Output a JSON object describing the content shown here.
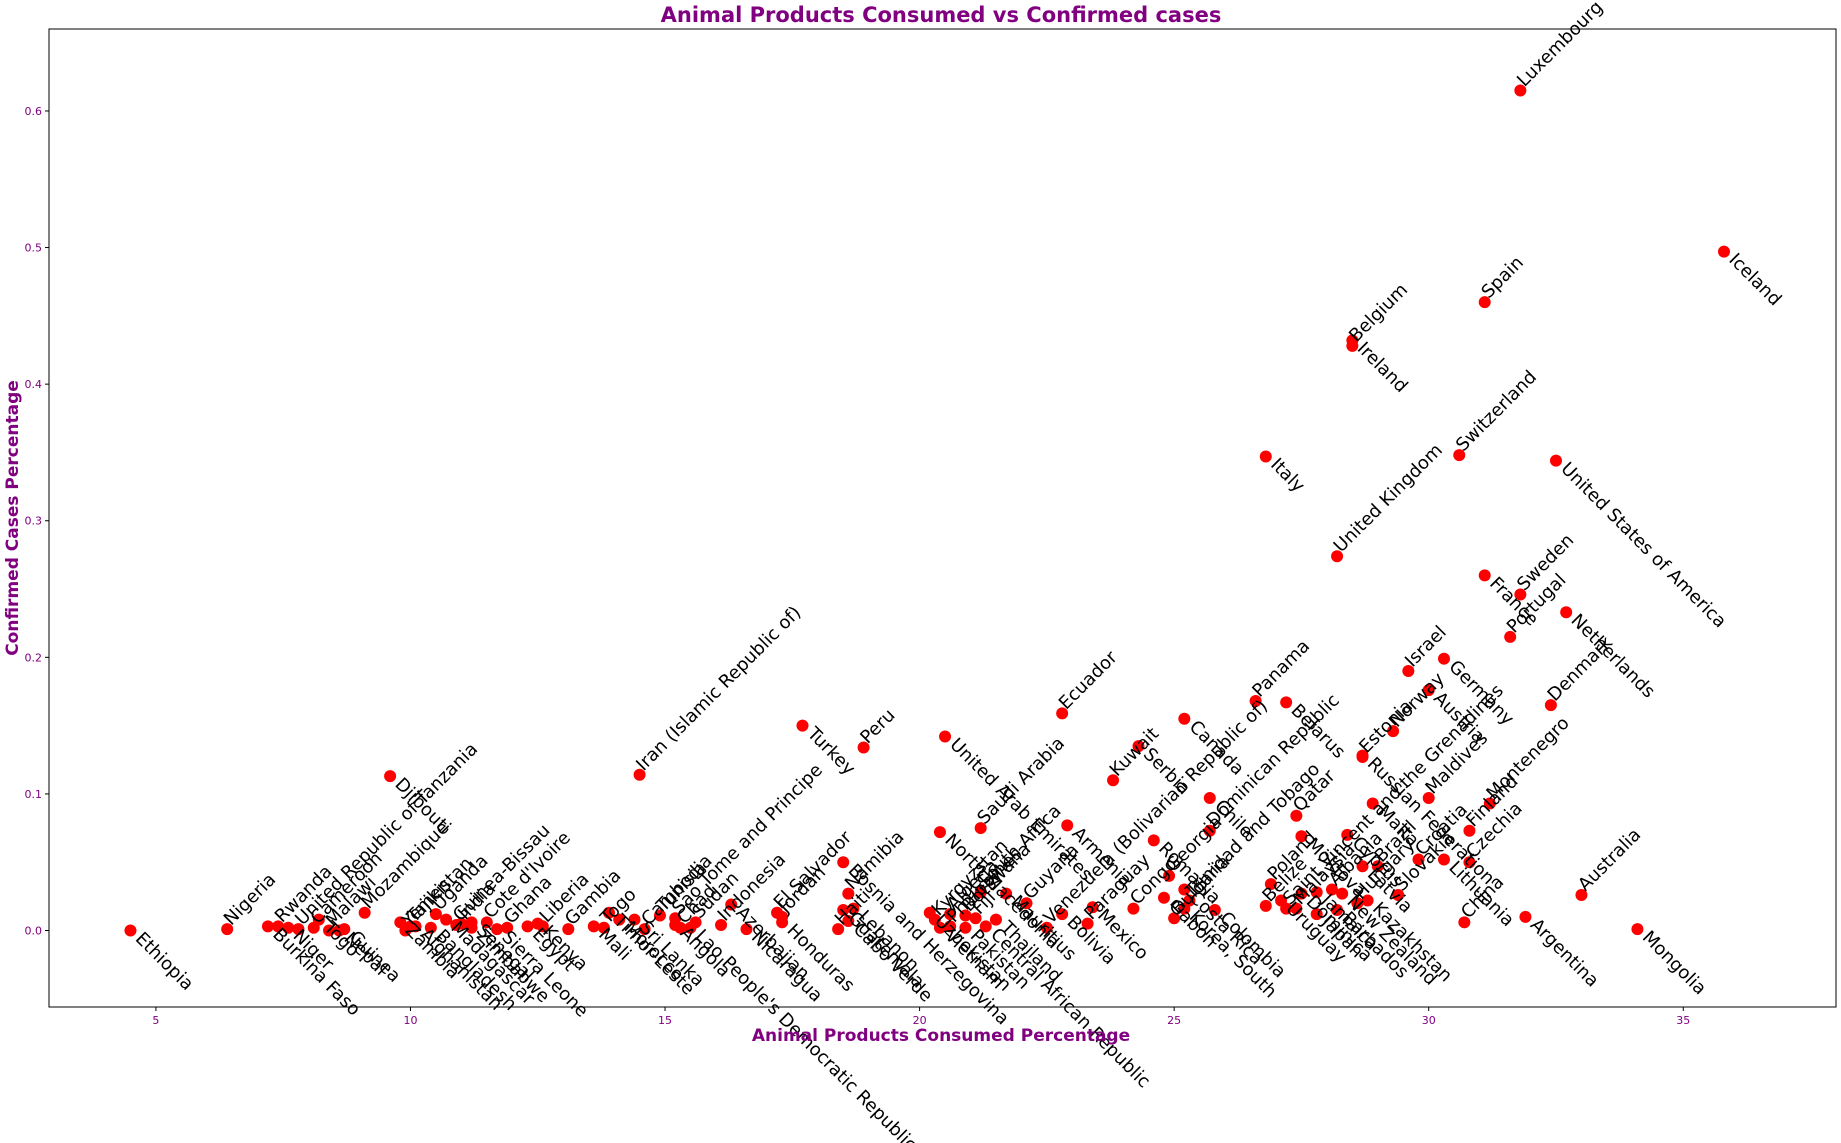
{
  "chart_data": {
    "type": "scatter",
    "title": "Animal Products Consumed vs Confirmed cases",
    "xlabel": "Animal Products Consumed Percentage",
    "ylabel": "Confirmed Cases Percentage",
    "xlim": [
      2.9,
      38.0
    ],
    "ylim": [
      -0.056,
      0.66
    ],
    "xticks": [
      5,
      10,
      15,
      20,
      25,
      30,
      35
    ],
    "yticks": [
      0.0,
      0.1,
      0.2,
      0.3,
      0.4,
      0.5,
      0.6
    ],
    "grid": false,
    "marker_color": "#ff0000",
    "text_color": "#800080",
    "points": [
      {
        "label": "Luxembourg",
        "x": 31.8,
        "y": 0.615
      },
      {
        "label": "Iceland",
        "x": 35.8,
        "y": 0.497
      },
      {
        "label": "Spain",
        "x": 31.1,
        "y": 0.46
      },
      {
        "label": "Ireland",
        "x": 28.5,
        "y": 0.432
      },
      {
        "label": "Belgium",
        "x": 28.5,
        "y": 0.428
      },
      {
        "label": "Italy",
        "x": 26.8,
        "y": 0.347
      },
      {
        "label": "Switzerland",
        "x": 30.6,
        "y": 0.348
      },
      {
        "label": "United States of America",
        "x": 32.5,
        "y": 0.344
      },
      {
        "label": "United Kingdom",
        "x": 28.2,
        "y": 0.274
      },
      {
        "label": "France",
        "x": 31.1,
        "y": 0.26
      },
      {
        "label": "Sweden",
        "x": 31.8,
        "y": 0.246
      },
      {
        "label": "Netherlands",
        "x": 32.7,
        "y": 0.233
      },
      {
        "label": "Portugal",
        "x": 31.6,
        "y": 0.215
      },
      {
        "label": "Germany",
        "x": 30.3,
        "y": 0.199
      },
      {
        "label": "Israel",
        "x": 29.6,
        "y": 0.19
      },
      {
        "label": "Austria",
        "x": 30.0,
        "y": 0.176
      },
      {
        "label": "Denmark",
        "x": 32.4,
        "y": 0.165
      },
      {
        "label": "Belarus",
        "x": 27.2,
        "y": 0.167
      },
      {
        "label": "Panama",
        "x": 26.6,
        "y": 0.168
      },
      {
        "label": "Canada",
        "x": 25.2,
        "y": 0.155
      },
      {
        "label": "Ecuador",
        "x": 22.8,
        "y": 0.159
      },
      {
        "label": "Serbia",
        "x": 24.3,
        "y": 0.135
      },
      {
        "label": "Norway",
        "x": 29.3,
        "y": 0.146
      },
      {
        "label": "Russian Federation",
        "x": 28.7,
        "y": 0.128
      },
      {
        "label": "Estonia",
        "x": 28.7,
        "y": 0.127
      },
      {
        "label": "Turkey",
        "x": 17.7,
        "y": 0.15
      },
      {
        "label": "Peru",
        "x": 18.9,
        "y": 0.134
      },
      {
        "label": "United Arab Emirates",
        "x": 20.5,
        "y": 0.142
      },
      {
        "label": "Iran (Islamic Republic of)",
        "x": 14.5,
        "y": 0.114
      },
      {
        "label": "Djibouti",
        "x": 9.6,
        "y": 0.113
      },
      {
        "label": "Kuwait",
        "x": 23.8,
        "y": 0.11
      },
      {
        "label": "Chile",
        "x": 25.7,
        "y": 0.097
      },
      {
        "label": "Maldives",
        "x": 30.0,
        "y": 0.097
      },
      {
        "label": "Malta",
        "x": 28.9,
        "y": 0.093
      },
      {
        "label": "Montenegro",
        "x": 31.2,
        "y": 0.093
      },
      {
        "label": "Armenia",
        "x": 22.9,
        "y": 0.077
      },
      {
        "label": "Qatar",
        "x": 27.4,
        "y": 0.084
      },
      {
        "label": "Cyprus",
        "x": 28.4,
        "y": 0.07
      },
      {
        "label": "Finland",
        "x": 30.8,
        "y": 0.073
      },
      {
        "label": "Moldova",
        "x": 27.5,
        "y": 0.069
      },
      {
        "label": "Saudi Arabia",
        "x": 21.2,
        "y": 0.075
      },
      {
        "label": "North Macedonia",
        "x": 20.4,
        "y": 0.072
      },
      {
        "label": "Dominican Republic",
        "x": 25.7,
        "y": 0.073
      },
      {
        "label": "Romania",
        "x": 24.6,
        "y": 0.066
      },
      {
        "label": "Croatia",
        "x": 29.8,
        "y": 0.052
      },
      {
        "label": "Lithuania",
        "x": 30.3,
        "y": 0.052
      },
      {
        "label": "Czechia",
        "x": 30.8,
        "y": 0.05
      },
      {
        "label": "Latvia",
        "x": 28.7,
        "y": 0.047
      },
      {
        "label": "Brazil",
        "x": 29.0,
        "y": 0.047
      },
      {
        "label": "Bolivia",
        "x": 22.8,
        "y": 0.012
      },
      {
        "label": "Guyana",
        "x": 22.1,
        "y": 0.02
      },
      {
        "label": "Mauritius",
        "x": 21.7,
        "y": 0.027
      },
      {
        "label": "South Africa",
        "x": 21.2,
        "y": 0.028
      },
      {
        "label": "Bosnia and Herzegovina",
        "x": 18.5,
        "y": 0.05
      },
      {
        "label": "El Salvador",
        "x": 17.2,
        "y": 0.013
      },
      {
        "label": "Azerbaijan",
        "x": 16.3,
        "y": 0.019
      },
      {
        "label": "Sao Tome and Principe",
        "x": 15.2,
        "y": 0.009
      },
      {
        "label": "Dominica",
        "x": 27.5,
        "y": 0.027
      },
      {
        "label": "Poland",
        "x": 26.9,
        "y": 0.034
      },
      {
        "label": "Uruguay",
        "x": 27.1,
        "y": 0.022
      },
      {
        "label": "Albania",
        "x": 28.1,
        "y": 0.03
      },
      {
        "label": "Jamaica",
        "x": 27.8,
        "y": 0.028
      },
      {
        "label": "Bulgaria",
        "x": 25.0,
        "y": 0.009
      },
      {
        "label": "Colombia",
        "x": 25.8,
        "y": 0.015
      },
      {
        "label": "Trinidad and Tobago",
        "x": 25.3,
        "y": 0.022
      },
      {
        "label": "Gabon",
        "x": 24.8,
        "y": 0.024
      },
      {
        "label": "Congo",
        "x": 24.2,
        "y": 0.016
      },
      {
        "label": "Mexico",
        "x": 23.4,
        "y": 0.017
      },
      {
        "label": "Paraguay",
        "x": 23.3,
        "y": 0.005
      },
      {
        "label": "Costa Rica",
        "x": 25.2,
        "y": 0.03
      },
      {
        "label": "Georgia",
        "x": 24.9,
        "y": 0.04
      },
      {
        "label": "Korea, South",
        "x": 25.2,
        "y": 0.016
      },
      {
        "label": "China",
        "x": 30.7,
        "y": 0.006
      },
      {
        "label": "Argentina",
        "x": 31.9,
        "y": 0.01
      },
      {
        "label": "Australia",
        "x": 33.0,
        "y": 0.026
      },
      {
        "label": "Mongolia",
        "x": 34.1,
        "y": 0.001
      },
      {
        "label": "Slovakia",
        "x": 29.4,
        "y": 0.026
      },
      {
        "label": "Kazakhstan",
        "x": 28.8,
        "y": 0.022
      },
      {
        "label": "Hungary",
        "x": 28.6,
        "y": 0.02
      },
      {
        "label": "New Zealand",
        "x": 28.3,
        "y": 0.027
      },
      {
        "label": "Saint Vincent and the Grenadines",
        "x": 27.2,
        "y": 0.016
      },
      {
        "label": "Japan",
        "x": 27.8,
        "y": 0.012
      },
      {
        "label": "Malaysia",
        "x": 27.4,
        "y": 0.016
      },
      {
        "label": "Barbados",
        "x": 28.2,
        "y": 0.015
      },
      {
        "label": "Belize",
        "x": 26.8,
        "y": 0.018
      },
      {
        "label": "Central African Republic",
        "x": 21.3,
        "y": 0.003
      },
      {
        "label": "Venezuela (Bolivarian Republic of)",
        "x": 22.5,
        "y": 0.002
      },
      {
        "label": "Pakistan",
        "x": 20.9,
        "y": 0.002
      },
      {
        "label": "Philippines",
        "x": 20.6,
        "y": 0.003
      },
      {
        "label": "Vietnam",
        "x": 20.4,
        "y": 0.002
      },
      {
        "label": "Fiji",
        "x": 21.1,
        "y": 0.009
      },
      {
        "label": "Thailand",
        "x": 21.5,
        "y": 0.008
      },
      {
        "label": "Botswana",
        "x": 20.9,
        "y": 0.011
      },
      {
        "label": "Uzbekistan",
        "x": 20.2,
        "y": 0.013
      },
      {
        "label": "Algeria",
        "x": 20.6,
        "y": 0.012
      },
      {
        "label": "Honduras",
        "x": 17.3,
        "y": 0.006
      },
      {
        "label": "Kyrgyzstan",
        "x": 20.3,
        "y": 0.008
      },
      {
        "label": "Cabo Verde",
        "x": 18.6,
        "y": 0.007
      },
      {
        "label": "Namibia",
        "x": 18.6,
        "y": 0.027
      },
      {
        "label": "Guatemala",
        "x": 18.5,
        "y": 0.015
      },
      {
        "label": "Haiti",
        "x": 18.4,
        "y": 0.001
      },
      {
        "label": "Lebanon",
        "x": 18.7,
        "y": 0.016
      },
      {
        "label": "Jordan",
        "x": 17.3,
        "y": 0.01
      },
      {
        "label": "Nicaragua",
        "x": 16.6,
        "y": 0.001
      },
      {
        "label": "Indonesia",
        "x": 16.1,
        "y": 0.004
      },
      {
        "label": "Sri Lanka",
        "x": 14.4,
        "y": 0.008
      },
      {
        "label": "Tunisia",
        "x": 14.9,
        "y": 0.011
      },
      {
        "label": "Angola",
        "x": 15.2,
        "y": 0.004
      },
      {
        "label": "Chad",
        "x": 15.3,
        "y": 0.002
      },
      {
        "label": "Lao People's Democratic Republic",
        "x": 15.5,
        "y": 0.002
      },
      {
        "label": "Sudan",
        "x": 15.6,
        "y": 0.006
      },
      {
        "label": "Timor-Leste",
        "x": 13.9,
        "y": 0.013
      },
      {
        "label": "Cambodia",
        "x": 14.6,
        "y": 0.001
      },
      {
        "label": "Morocco",
        "x": 14.1,
        "y": 0.008
      },
      {
        "label": "Togo",
        "x": 13.8,
        "y": 0.002
      },
      {
        "label": "Mali",
        "x": 13.6,
        "y": 0.003
      },
      {
        "label": "Gambia",
        "x": 13.1,
        "y": 0.001
      },
      {
        "label": "Kenya",
        "x": 12.5,
        "y": 0.005
      },
      {
        "label": "Liberia",
        "x": 12.6,
        "y": 0.003
      },
      {
        "label": "Egypt",
        "x": 12.3,
        "y": 0.003
      },
      {
        "label": "Ghana",
        "x": 11.9,
        "y": 0.002
      },
      {
        "label": "Sierra Leone",
        "x": 11.7,
        "y": 0.001
      },
      {
        "label": "Cote d'Ivoire",
        "x": 11.5,
        "y": 0.006
      },
      {
        "label": "Zimbabwe",
        "x": 11.2,
        "y": 0.002
      },
      {
        "label": "Guinea-Bissau",
        "x": 10.9,
        "y": 0.004
      },
      {
        "label": "Senegal",
        "x": 11.2,
        "y": 0.006
      },
      {
        "label": "India",
        "x": 11.0,
        "y": 0.005
      },
      {
        "label": "Madagascar",
        "x": 10.7,
        "y": 0.008
      },
      {
        "label": "Uganda",
        "x": 10.5,
        "y": 0.012
      },
      {
        "label": "Afghanistan",
        "x": 10.1,
        "y": 0.003
      },
      {
        "label": "Tajikistan",
        "x": 10.0,
        "y": 0.003
      },
      {
        "label": "Bangladesh",
        "x": 10.4,
        "y": 0.002
      },
      {
        "label": "Yemen",
        "x": 9.9,
        "y": 0.0
      },
      {
        "label": "Zambia",
        "x": 9.8,
        "y": 0.006
      },
      {
        "label": "Mozambique",
        "x": 9.1,
        "y": 0.013
      },
      {
        "label": "Guinea",
        "x": 8.7,
        "y": 0.001
      },
      {
        "label": "Malawi",
        "x": 8.4,
        "y": 0.0
      },
      {
        "label": "Nepal",
        "x": 8.6,
        "y": 0.0
      },
      {
        "label": "Cameroon",
        "x": 8.1,
        "y": 0.002
      },
      {
        "label": "Togo",
        "x": 8.2,
        "y": 0.008
      },
      {
        "label": "United Republic of Tanzania",
        "x": 7.8,
        "y": 0.001
      },
      {
        "label": "Niger",
        "x": 7.6,
        "y": 0.002
      },
      {
        "label": "Rwanda",
        "x": 7.4,
        "y": 0.003
      },
      {
        "label": "Burkina Faso",
        "x": 7.2,
        "y": 0.003
      },
      {
        "label": "Nigeria",
        "x": 6.4,
        "y": 0.001
      },
      {
        "label": "Ethiopia",
        "x": 4.5,
        "y": 0.0
      }
    ]
  }
}
